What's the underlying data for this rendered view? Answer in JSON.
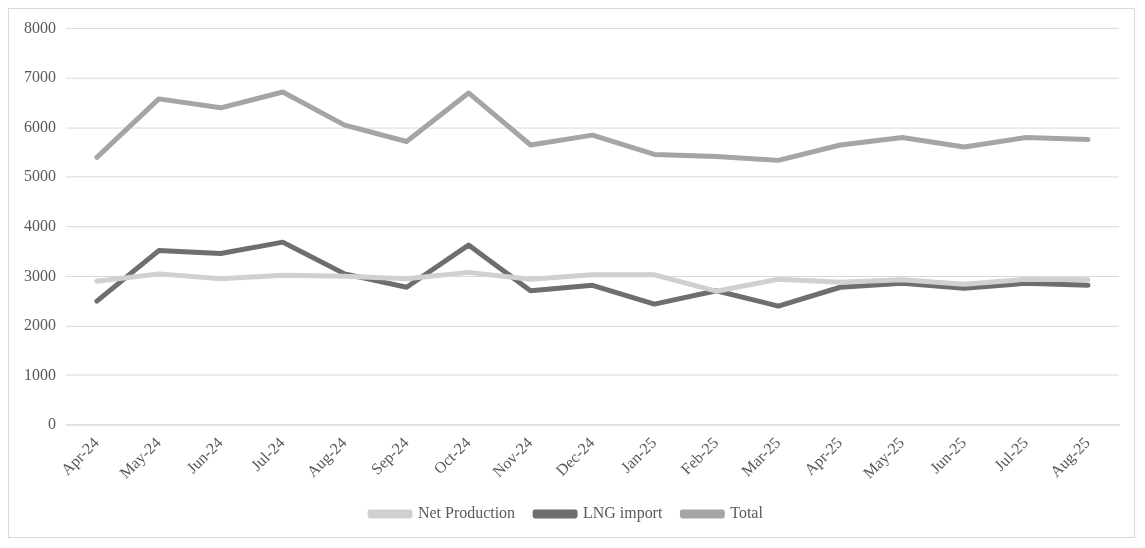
{
  "chart_data": {
    "type": "line",
    "categories": [
      "Apr-24",
      "May-24",
      "Jun-24",
      "Jul-24",
      "Aug-24",
      "Sep-24",
      "Oct-24",
      "Nov-24",
      "Dec-24",
      "Jan-25",
      "Feb-25",
      "Mar-25",
      "Apr-25",
      "May-25",
      "Jun-25",
      "Jul-25",
      "Aug-25"
    ],
    "series": [
      {
        "name": "Net Production",
        "color": "#d0d0d0",
        "values": [
          2900,
          3050,
          2950,
          3020,
          3000,
          2950,
          3080,
          2940,
          3030,
          3030,
          2700,
          2940,
          2880,
          2930,
          2840,
          2940,
          2930
        ]
      },
      {
        "name": "LNG import",
        "color": "#6e6e6e",
        "values": [
          2500,
          3520,
          3460,
          3690,
          3050,
          2780,
          3630,
          2710,
          2820,
          2440,
          2710,
          2400,
          2780,
          2860,
          2760,
          2860,
          2820
        ]
      },
      {
        "name": "Total",
        "color": "#a5a5a5",
        "values": [
          5400,
          6580,
          6400,
          6720,
          6050,
          5720,
          6700,
          5650,
          5850,
          5460,
          5420,
          5340,
          5650,
          5800,
          5610,
          5800,
          5760
        ]
      }
    ],
    "ylim": [
      0,
      8000
    ],
    "yticks": [
      0,
      1000,
      2000,
      3000,
      4000,
      5000,
      6000,
      7000,
      8000
    ],
    "grid": "y",
    "legend": "bottom",
    "marker": "none",
    "line_style": "solid"
  }
}
